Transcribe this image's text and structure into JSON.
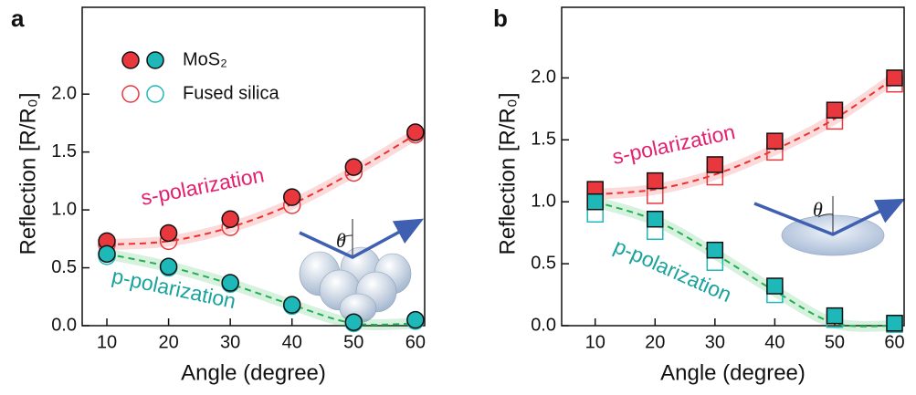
{
  "chart_data": [
    {
      "type": "scatter",
      "panel_label": "a",
      "marker": "circle",
      "x_label": "Angle (degree)",
      "y_label": "Reflection [R/R₀]",
      "x": [
        10,
        20,
        30,
        40,
        50,
        60
      ],
      "xlim": [
        6,
        61.5
      ],
      "ylim": [
        0,
        2.75
      ],
      "xticks": [
        10,
        20,
        30,
        40,
        50,
        60
      ],
      "yticks": [
        {
          "value": 0,
          "label": "0.0"
        },
        {
          "value": 0.5,
          "label": "0.5"
        },
        {
          "value": 1,
          "label": "1.0"
        },
        {
          "value": 1.5,
          "label": "1.5"
        },
        {
          "value": 2,
          "label": "2.0"
        }
      ],
      "series": [
        {
          "color": "#e8383d",
          "filled": true,
          "values": [
            0.73,
            0.8,
            0.92,
            1.11,
            1.37,
            1.67
          ]
        },
        {
          "color": "#e8383d",
          "filled": false,
          "values": [
            0.7,
            0.73,
            0.85,
            1.04,
            1.32,
            1.65
          ]
        },
        {
          "color": "#1fb8b8",
          "filled": true,
          "values": [
            0.62,
            0.51,
            0.37,
            0.18,
            0.03,
            0.05
          ]
        },
        {
          "color": "#1fb8b8",
          "filled": false,
          "values": [
            0.6,
            0.5,
            0.36,
            0.17,
            0.02,
            0.04
          ]
        }
      ],
      "fits": [
        {
          "color": "#ee3030",
          "values": [
            0.7,
            0.73,
            0.85,
            1.05,
            1.33,
            1.65
          ]
        },
        {
          "color": "#22b050",
          "values": [
            0.62,
            0.51,
            0.36,
            0.18,
            0.02,
            0.02
          ]
        }
      ],
      "annotations": [
        {
          "text": "s-polarization",
          "color": "#e3216f"
        },
        {
          "text": "p-polarization",
          "color": "#1aa39d"
        }
      ],
      "legend": {
        "entries": [
          {
            "name": "MoS₂",
            "filled": true
          },
          {
            "name": "Fused silica",
            "filled": false
          }
        ]
      },
      "inset_label": "θ"
    },
    {
      "type": "scatter",
      "panel_label": "b",
      "marker": "square",
      "x_label": "Angle (degree)",
      "y_label": "Reflection [R/R₀]",
      "x": [
        10,
        20,
        30,
        40,
        50,
        60
      ],
      "xlim": [
        4.4,
        61.6
      ],
      "ylim": [
        0,
        2.57
      ],
      "xticks": [
        10,
        20,
        30,
        40,
        50,
        60
      ],
      "yticks": [
        {
          "value": 0,
          "label": "0.0"
        },
        {
          "value": 0.5,
          "label": "0.5"
        },
        {
          "value": 1,
          "label": "1.0"
        },
        {
          "value": 1.5,
          "label": "1.5"
        },
        {
          "value": 2,
          "label": "2.0"
        }
      ],
      "series": [
        {
          "color": "#e8383d",
          "filled": false,
          "values": [
            1.02,
            1.05,
            1.2,
            1.4,
            1.65,
            1.95
          ]
        },
        {
          "color": "#e8383d",
          "filled": true,
          "values": [
            1.1,
            1.17,
            1.3,
            1.49,
            1.74,
            2.0
          ]
        },
        {
          "color": "#1fb8b8",
          "filled": false,
          "values": [
            0.9,
            0.76,
            0.51,
            0.25,
            0.05,
            0.01
          ]
        },
        {
          "color": "#1fb8b8",
          "filled": true,
          "values": [
            1.0,
            0.86,
            0.61,
            0.32,
            0.08,
            0.02
          ]
        }
      ],
      "fits": [
        {
          "color": "#ee3030",
          "values": [
            1.06,
            1.1,
            1.22,
            1.42,
            1.67,
            2.0
          ]
        },
        {
          "color": "#22b050",
          "values": [
            1.0,
            0.85,
            0.58,
            0.28,
            0.02,
            0.0
          ]
        }
      ],
      "annotations": [
        {
          "text": "s-polarization",
          "color": "#e3216f"
        },
        {
          "text": "p-polarization",
          "color": "#1aa39d"
        }
      ],
      "inset_label": "θ"
    }
  ]
}
